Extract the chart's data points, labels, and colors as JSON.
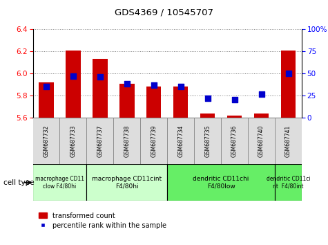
{
  "title": "GDS4369 / 10545707",
  "samples": [
    "GSM687732",
    "GSM687733",
    "GSM687737",
    "GSM687738",
    "GSM687739",
    "GSM687734",
    "GSM687735",
    "GSM687736",
    "GSM687740",
    "GSM687741"
  ],
  "transformed_counts": [
    5.92,
    6.21,
    6.13,
    5.91,
    5.88,
    5.88,
    5.64,
    5.62,
    5.64,
    6.21
  ],
  "percentile_ranks": [
    35,
    47,
    46,
    38,
    37,
    35,
    22,
    20,
    27,
    50
  ],
  "ylim_left": [
    5.6,
    6.4
  ],
  "ylim_right": [
    0,
    100
  ],
  "yticks_left": [
    5.6,
    5.8,
    6.0,
    6.2,
    6.4
  ],
  "yticks_right": [
    0,
    25,
    50,
    75,
    100
  ],
  "bar_color": "#cc0000",
  "scatter_color": "#0000cc",
  "bar_bottom": 5.6,
  "cell_types": [
    {
      "label": "macrophage CD11\nclow F4/80hi",
      "start": 0,
      "end": 2,
      "color": "#ccffcc"
    },
    {
      "label": "macrophage CD11cint\nF4/80hi",
      "start": 2,
      "end": 5,
      "color": "#ccffcc"
    },
    {
      "label": "dendritic CD11chi\nF4/80low",
      "start": 5,
      "end": 9,
      "color": "#66ee66"
    },
    {
      "label": "dendritic CD11ci\nnt  F4/80int",
      "start": 9,
      "end": 10,
      "color": "#66ee66"
    }
  ],
  "legend_bar_label": "transformed count",
  "legend_scatter_label": "percentile rank within the sample",
  "cell_type_label": "cell type",
  "bar_width": 0.55,
  "scatter_size": 28,
  "sample_box_color": "#dddddd",
  "sample_box_edge_color": "#888888"
}
